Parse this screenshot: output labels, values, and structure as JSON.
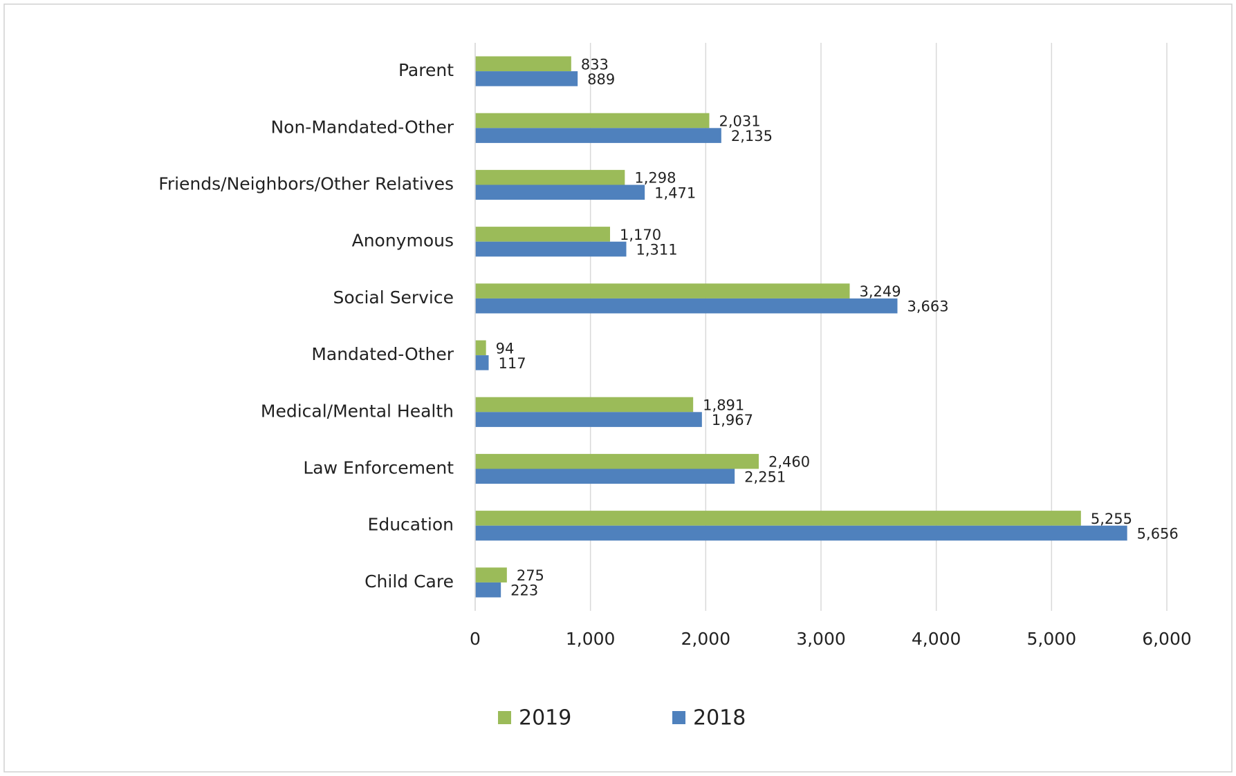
{
  "chart_data": {
    "type": "hbar",
    "categories": [
      "Parent",
      "Non-Mandated-Other",
      "Friends/Neighbors/Other Relatives",
      "Anonymous",
      "Social Service",
      "Mandated-Other",
      "Medical/Mental Health",
      "Law Enforcement",
      "Education",
      "Child Care"
    ],
    "series": [
      {
        "name": "2019",
        "color": "#9bbb59",
        "values": [
          833,
          2031,
          1298,
          1170,
          3249,
          94,
          1891,
          2460,
          5255,
          275
        ],
        "value_labels": [
          "833",
          "2,031",
          "1,298",
          "1,170",
          "3,249",
          "94",
          "1,891",
          "2,460",
          "5,255",
          "275"
        ]
      },
      {
        "name": "2018",
        "color": "#4f81bd",
        "values": [
          889,
          2135,
          1471,
          1311,
          3663,
          117,
          1967,
          2251,
          5656,
          223
        ],
        "value_labels": [
          "889",
          "2,135",
          "1,471",
          "1,311",
          "3,663",
          "117",
          "1,967",
          "2,251",
          "5,656",
          "223"
        ]
      }
    ],
    "xlim": [
      0,
      6000
    ],
    "xticks": [
      0,
      {
        "value": 1000,
        "label": "1,000"
      },
      {
        "value": 2000,
        "label": "2,000"
      },
      {
        "value": 3000,
        "label": "3,000"
      },
      {
        "value": 4000,
        "label": "4,000"
      },
      {
        "value": 5000,
        "label": "5,000"
      },
      {
        "value": 6000,
        "label": "6,000"
      }
    ],
    "grid": true,
    "legend": "bottom"
  }
}
